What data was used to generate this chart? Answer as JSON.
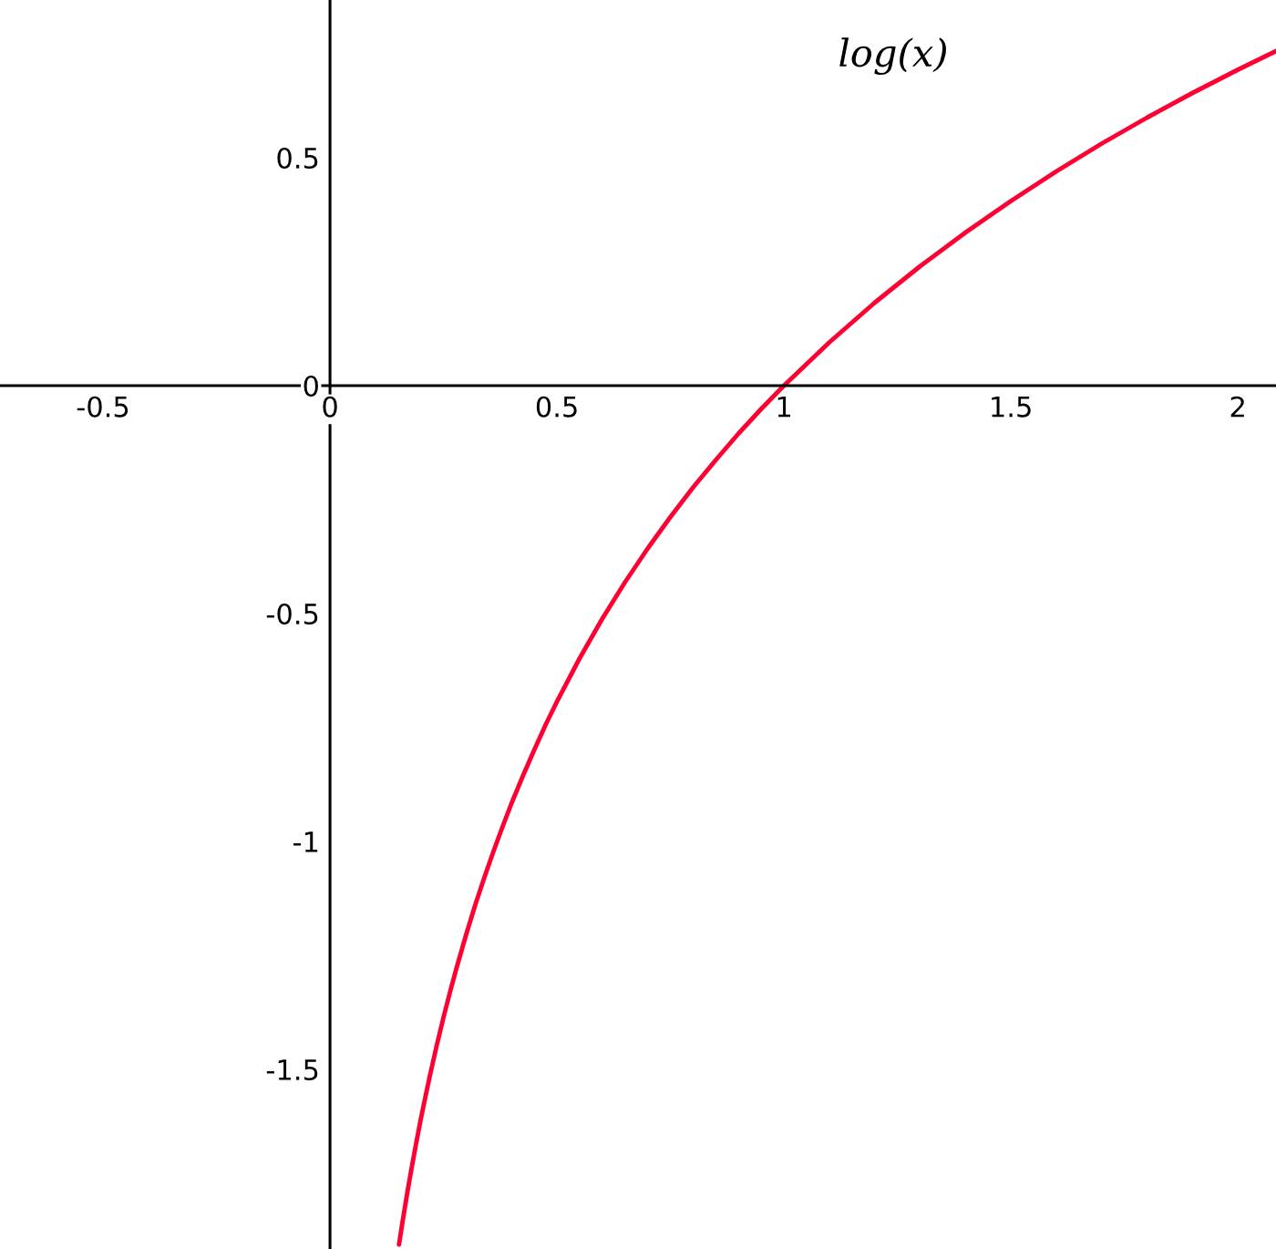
{
  "chart_data": {
    "type": "line",
    "x": [
      0.152,
      0.16,
      0.17,
      0.18,
      0.19,
      0.2,
      0.21,
      0.22,
      0.235,
      0.25,
      0.265,
      0.28,
      0.3,
      0.32,
      0.34,
      0.36,
      0.38,
      0.4,
      0.425,
      0.45,
      0.475,
      0.5,
      0.55,
      0.6,
      0.65,
      0.7,
      0.75,
      0.8,
      0.85,
      0.9,
      0.95,
      1.0,
      1.1,
      1.2,
      1.3,
      1.4,
      1.5,
      1.6,
      1.7,
      1.8,
      1.9,
      2.0,
      2.084
    ],
    "series": [
      {
        "name": "log(x)",
        "color": "#ff0033",
        "values": [
          -1.884,
          -1.833,
          -1.772,
          -1.715,
          -1.661,
          -1.609,
          -1.561,
          -1.514,
          -1.448,
          -1.386,
          -1.328,
          -1.273,
          -1.204,
          -1.139,
          -1.079,
          -1.022,
          -0.968,
          -0.916,
          -0.856,
          -0.799,
          -0.744,
          -0.693,
          -0.598,
          -0.511,
          -0.431,
          -0.357,
          -0.288,
          -0.223,
          -0.163,
          -0.105,
          -0.051,
          0,
          0.095,
          0.182,
          0.262,
          0.336,
          0.405,
          0.47,
          0.531,
          0.588,
          0.642,
          0.693,
          0.734
        ]
      }
    ],
    "xlim": [
      -0.727,
      2.084
    ],
    "ylim": [
      -1.894,
      0.846
    ],
    "xticks": [
      {
        "value": -0.5,
        "label": "-0.5"
      },
      0,
      0.5,
      1,
      1.5,
      2
    ],
    "yticks": [
      {
        "value": -1.5,
        "label": "-1.5"
      },
      {
        "value": -1,
        "label": "-1"
      },
      {
        "value": -0.5,
        "label": "-0.5"
      },
      0,
      0.5
    ],
    "grid": false,
    "legend": false,
    "marker": "none",
    "line_style": "solid"
  }
}
